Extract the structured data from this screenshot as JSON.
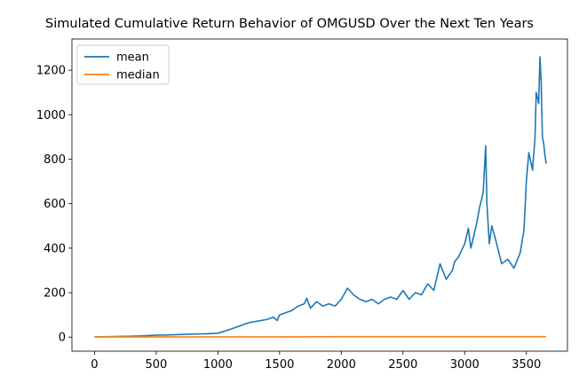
{
  "chart_data": {
    "type": "line",
    "title": "Simulated Cumulative Return Behavior of OMGUSD Over the Next Ten Years",
    "xlabel": "",
    "ylabel": "",
    "xlim": [
      -183,
      3833
    ],
    "ylim": [
      -63,
      1340
    ],
    "x_ticks": [
      0,
      500,
      1000,
      1500,
      2000,
      2500,
      3000,
      3500
    ],
    "y_ticks": [
      0,
      200,
      400,
      600,
      800,
      1000,
      1200
    ],
    "grid": false,
    "legend": "upper left",
    "series": [
      {
        "name": "mean",
        "color": "#1f77b4",
        "x": [
          0,
          100,
          200,
          300,
          400,
          500,
          600,
          700,
          800,
          900,
          1000,
          1050,
          1100,
          1150,
          1200,
          1250,
          1300,
          1350,
          1400,
          1450,
          1480,
          1500,
          1550,
          1600,
          1650,
          1700,
          1720,
          1750,
          1800,
          1850,
          1900,
          1950,
          2000,
          2050,
          2100,
          2150,
          2200,
          2250,
          2300,
          2350,
          2400,
          2450,
          2500,
          2550,
          2600,
          2650,
          2700,
          2750,
          2800,
          2850,
          2900,
          2920,
          2950,
          3000,
          3030,
          3050,
          3080,
          3100,
          3120,
          3150,
          3170,
          3180,
          3200,
          3220,
          3250,
          3300,
          3350,
          3400,
          3450,
          3480,
          3500,
          3520,
          3550,
          3570,
          3580,
          3600,
          3610,
          3620,
          3630,
          3640,
          3650,
          3660
        ],
        "y": [
          1,
          2,
          3,
          4,
          6,
          9,
          10,
          12,
          14,
          15,
          18,
          26,
          35,
          45,
          55,
          65,
          70,
          75,
          80,
          90,
          75,
          100,
          110,
          120,
          140,
          150,
          175,
          130,
          160,
          140,
          150,
          140,
          170,
          220,
          190,
          170,
          160,
          170,
          150,
          170,
          180,
          170,
          210,
          170,
          200,
          190,
          240,
          210,
          330,
          260,
          300,
          340,
          360,
          420,
          490,
          400,
          470,
          520,
          580,
          650,
          860,
          600,
          420,
          500,
          440,
          330,
          350,
          310,
          380,
          480,
          700,
          830,
          750,
          900,
          1100,
          1050,
          1260,
          1150,
          900,
          870,
          820,
          780
        ]
      },
      {
        "name": "median",
        "color": "#ff7f0e",
        "x": [
          0,
          500,
          1000,
          1500,
          2000,
          2500,
          3000,
          3500,
          3660
        ],
        "y": [
          1,
          1,
          1,
          1,
          2,
          2,
          2,
          2,
          2
        ]
      }
    ]
  }
}
